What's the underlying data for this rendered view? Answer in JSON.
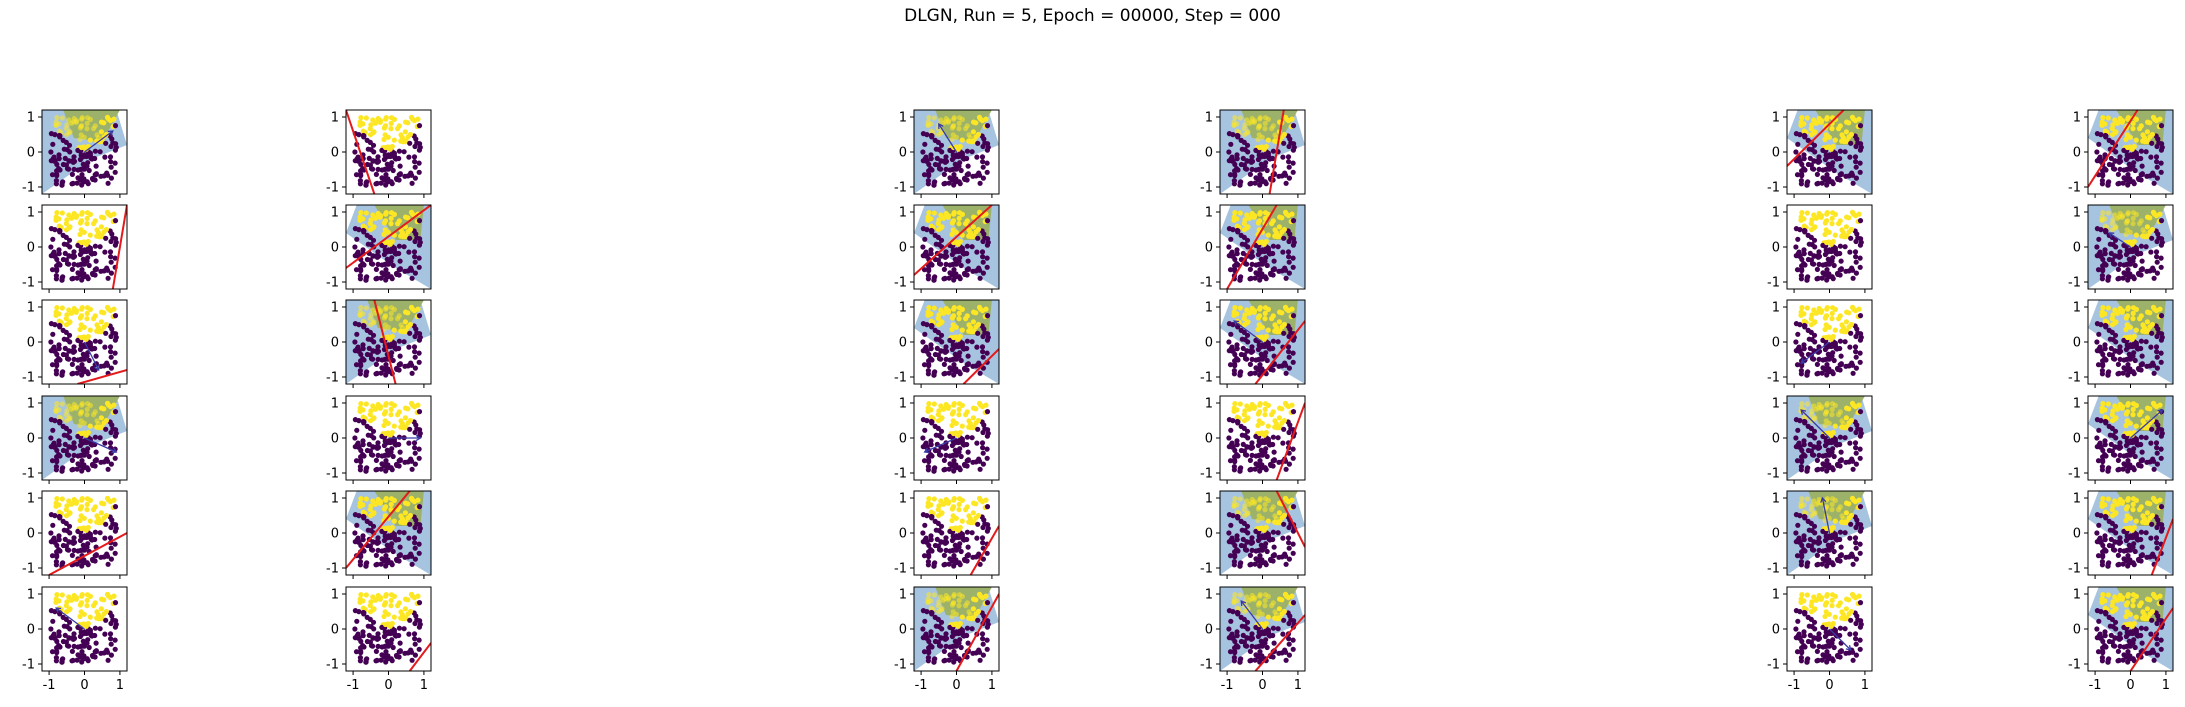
{
  "figure": {
    "title": "DLGN, Run = 5, Epoch = 00000, Step = 000"
  },
  "chart_data": {
    "type": "scatter",
    "title": "DLGN, Run = 5, Epoch = 00000, Step = 000",
    "layout": "6 rows x 6 columns of small panels",
    "xlim": [
      -1.2,
      1.2
    ],
    "ylim": [
      -1.2,
      1.2
    ],
    "xticks": [
      "-1",
      "0",
      "1"
    ],
    "yticks": [
      "1",
      "0",
      "-1"
    ],
    "grid": false,
    "colors": {
      "class_positive": "#fde725",
      "class_negative": "#440154",
      "active_region": "#9cb26a",
      "active_region_light": "#a6c4e0",
      "boundary_line": "#e41a1c",
      "weight_arrow": "#3a3aa6"
    },
    "panels": [
      {
        "line": null,
        "region": "upper-left",
        "arrow": [
          0.8,
          0.6
        ]
      },
      {
        "line": [
          [
            -1.2,
            1.2
          ],
          [
            -0.4,
            -1.2
          ]
        ],
        "region": "none",
        "arrow": null
      },
      {
        "line": null,
        "region": "upper-left",
        "arrow": [
          -0.5,
          0.8
        ]
      },
      {
        "line": [
          [
            0.2,
            -1.2
          ],
          [
            0.6,
            1.2
          ]
        ],
        "region": "upper-left",
        "arrow": null
      },
      {
        "line": [
          [
            -1.2,
            -0.4
          ],
          [
            0.4,
            1.2
          ]
        ],
        "region": "upper-right",
        "arrow": null
      },
      {
        "line": [
          [
            -1.2,
            -1.0
          ],
          [
            0.2,
            1.2
          ]
        ],
        "region": "upper-right",
        "arrow": null
      },
      {
        "line": [
          [
            0.8,
            -1.2
          ],
          [
            1.2,
            1.2
          ]
        ],
        "region": "none",
        "arrow": null
      },
      {
        "line": [
          [
            -1.2,
            -0.6
          ],
          [
            1.2,
            1.2
          ]
        ],
        "region": "upper-right",
        "arrow": null
      },
      {
        "line": [
          [
            -1.2,
            -0.8
          ],
          [
            1.0,
            1.2
          ]
        ],
        "region": "upper-right",
        "arrow": null
      },
      {
        "line": [
          [
            -1.0,
            -1.2
          ],
          [
            0.4,
            1.2
          ]
        ],
        "region": "upper-right",
        "arrow": null
      },
      {
        "line": null,
        "region": "none",
        "arrow": null
      },
      {
        "line": null,
        "region": "upper-left",
        "arrow": [
          -0.6,
          0.4
        ]
      },
      {
        "line": [
          [
            -0.2,
            -1.2
          ],
          [
            1.2,
            -0.8
          ]
        ],
        "region": "none",
        "arrow": [
          0.4,
          -0.8
        ]
      },
      {
        "line": [
          [
            -0.4,
            1.2
          ],
          [
            0.2,
            -1.2
          ]
        ],
        "region": "upper-left",
        "arrow": null
      },
      {
        "line": [
          [
            0.2,
            -1.2
          ],
          [
            1.2,
            -0.2
          ]
        ],
        "region": "upper-right",
        "arrow": null
      },
      {
        "line": [
          [
            -0.2,
            -1.2
          ],
          [
            1.2,
            0.6
          ]
        ],
        "region": "upper-right",
        "arrow": [
          -0.8,
          0.6
        ]
      },
      {
        "line": null,
        "region": "none",
        "arrow": [
          -0.8,
          -0.6
        ]
      },
      {
        "line": null,
        "region": "upper-right",
        "arrow": null
      },
      {
        "line": null,
        "region": "upper-left",
        "arrow": [
          0.9,
          -0.4
        ]
      },
      {
        "line": null,
        "region": "none",
        "arrow": [
          0.9,
          0.0
        ]
      },
      {
        "line": null,
        "region": "none",
        "arrow": [
          -0.9,
          -0.4
        ]
      },
      {
        "line": [
          [
            0.4,
            -1.2
          ],
          [
            1.2,
            1.0
          ]
        ],
        "region": "none",
        "arrow": null
      },
      {
        "line": null,
        "region": "upper-left",
        "arrow": [
          -0.8,
          0.8
        ]
      },
      {
        "line": null,
        "region": "upper-right",
        "arrow": [
          0.9,
          0.8
        ]
      },
      {
        "line": [
          [
            -1.0,
            -1.2
          ],
          [
            1.2,
            0.0
          ]
        ],
        "region": "none",
        "arrow": null
      },
      {
        "line": [
          [
            -1.2,
            -1.0
          ],
          [
            0.6,
            1.2
          ]
        ],
        "region": "upper-right",
        "arrow": null
      },
      {
        "line": [
          [
            0.4,
            -1.2
          ],
          [
            1.2,
            0.2
          ]
        ],
        "region": "none",
        "arrow": null
      },
      {
        "line": [
          [
            0.4,
            1.2
          ],
          [
            1.2,
            -0.4
          ]
        ],
        "region": "upper-left",
        "arrow": null
      },
      {
        "line": null,
        "region": "upper-left",
        "arrow": [
          -0.2,
          1.0
        ]
      },
      {
        "line": [
          [
            0.6,
            -1.2
          ],
          [
            1.2,
            0.4
          ]
        ],
        "region": "upper-right",
        "arrow": null
      },
      {
        "line": null,
        "region": "none",
        "arrow": [
          -0.8,
          0.6
        ]
      },
      {
        "line": [
          [
            0.6,
            -1.2
          ],
          [
            1.2,
            -0.4
          ]
        ],
        "region": "none",
        "arrow": null
      },
      {
        "line": [
          [
            0.0,
            -1.2
          ],
          [
            1.2,
            1.0
          ]
        ],
        "region": "upper-left",
        "arrow": null
      },
      {
        "line": [
          [
            -0.2,
            -1.2
          ],
          [
            1.2,
            0.4
          ]
        ],
        "region": "upper-left",
        "arrow": [
          -0.6,
          0.8
        ]
      },
      {
        "line": null,
        "region": "none",
        "arrow": [
          0.6,
          -0.6
        ]
      },
      {
        "line": [
          [
            0.0,
            -1.2
          ],
          [
            1.2,
            0.6
          ]
        ],
        "region": "upper-right",
        "arrow": null
      }
    ]
  }
}
